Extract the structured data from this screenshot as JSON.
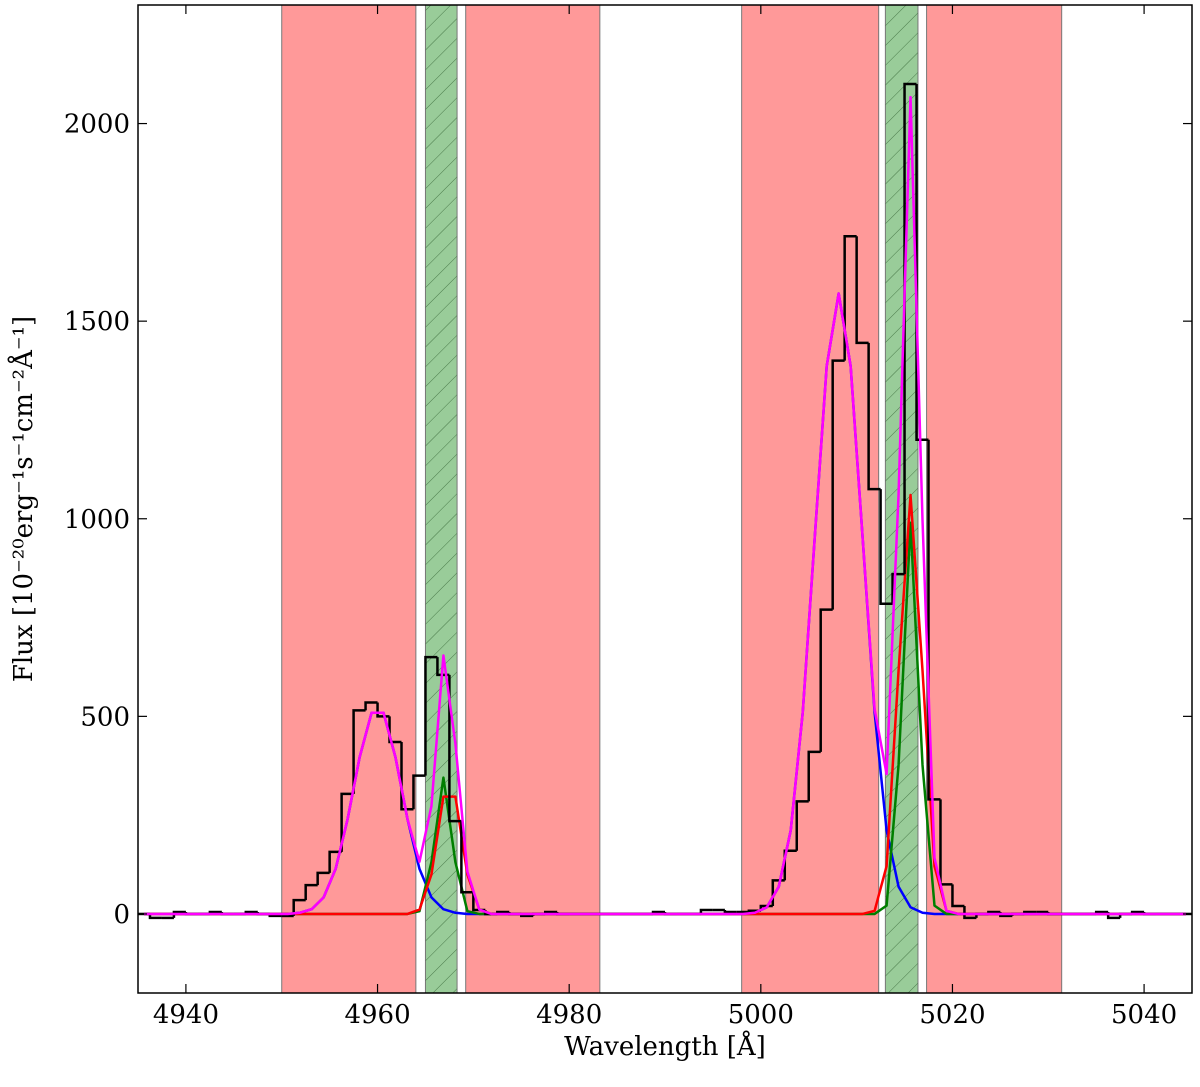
{
  "chart_data": {
    "type": "histogram",
    "xlabel": "Wavelength [Å]",
    "ylabel": "Flux [10⁻²⁰erg⁻¹s⁻¹cm⁻²Å⁻¹]",
    "xlim": [
      4935,
      5045
    ],
    "ylim": [
      -200,
      2300
    ],
    "xticks": [
      4940,
      4960,
      4980,
      5000,
      5020,
      5040
    ],
    "yticks": [
      0,
      500,
      1000,
      1500,
      2000
    ],
    "color": "#000000",
    "bins": [
      4935,
      4936.25,
      4937.5,
      4938.75,
      4940,
      4941.25,
      4942.5,
      4943.75,
      4945,
      4946.25,
      4947.5,
      4948.75,
      4950,
      4951.25,
      4952.5,
      4953.75,
      4955,
      4956.25,
      4957.5,
      4958.75,
      4960,
      4961.25,
      4962.5,
      4963.75,
      4965,
      4966.25,
      4967.5,
      4968.75,
      4970,
      4971.25,
      4972.5,
      4973.75,
      4975,
      4976.25,
      4977.5,
      4978.75,
      4980,
      4981.25,
      4982.5,
      4983.75,
      4985,
      4986.25,
      4987.5,
      4988.75,
      4990,
      4991.25,
      4992.5,
      4993.75,
      4995,
      4996.25,
      4997.5,
      4998.75,
      5000,
      5001.25,
      5002.5,
      5003.75,
      5005,
      5006.25,
      5007.5,
      5008.75,
      5010,
      5011.25,
      5012.5,
      5013.75,
      5015,
      5016.25,
      5017.5,
      5018.75,
      5020,
      5021.25,
      5022.5,
      5023.75,
      5025,
      5026.25,
      5027.5,
      5028.75,
      5030,
      5031.25,
      5032.5,
      5033.75,
      5035,
      5036.25,
      5037.5,
      5038.75,
      5040,
      5041.25,
      5042.5,
      5043.75,
      5045
    ],
    "values": [
      0,
      -10,
      -10,
      5,
      0,
      0,
      5,
      0,
      0,
      5,
      0,
      -5,
      -5,
      35,
      73,
      104,
      157,
      304,
      515,
      535,
      500,
      435,
      265,
      350,
      650,
      605,
      235,
      55,
      10,
      0,
      5,
      0,
      -5,
      0,
      5,
      0,
      0,
      0,
      0,
      0,
      0,
      0,
      0,
      5,
      0,
      0,
      0,
      10,
      10,
      5,
      5,
      8,
      20,
      85,
      160,
      285,
      410,
      770,
      1400,
      1715,
      1445,
      1075,
      785,
      860,
      2100,
      1200,
      290,
      75,
      20,
      -10,
      0,
      5,
      -5,
      0,
      5,
      5,
      0,
      0,
      0,
      0,
      5,
      -10,
      0,
      5,
      0,
      0,
      0,
      0
    ],
    "x": [
      4935.625,
      4936.875,
      4938.125,
      4939.375,
      4940.625,
      4941.875,
      4943.125,
      4944.375,
      4945.625,
      4946.875,
      4948.125,
      4949.375,
      4950.625,
      4951.875,
      4953.125,
      4954.375,
      4955.625,
      4956.875,
      4958.125,
      4959.375,
      4960.625,
      4961.875,
      4963.125,
      4964.375,
      4965.625,
      4966.875,
      4968.125,
      4969.375,
      4970.625,
      4971.875,
      4973.125,
      4974.375,
      4975.625,
      4976.875,
      4978.125,
      4979.375,
      4980.625,
      4981.875,
      4983.125,
      4984.375,
      4985.625,
      4986.875,
      4988.125,
      4989.375,
      4990.625,
      4991.875,
      4993.125,
      4994.375,
      4995.625,
      4996.875,
      4998.125,
      4999.375,
      5000.625,
      5001.875,
      5003.125,
      5004.375,
      5005.625,
      5006.875,
      5008.125,
      5009.375,
      5010.625,
      5011.875,
      5013.125,
      5014.375,
      5015.625,
      5016.875,
      5018.125,
      5019.375,
      5020.625,
      5021.875,
      5023.125,
      5024.375,
      5025.625,
      5026.875,
      5028.125,
      5029.375,
      5030.625,
      5031.875,
      5033.125,
      5034.375,
      5035.625,
      5036.875,
      5038.125,
      5039.375,
      5040.625,
      5041.875,
      5043.125,
      5044.375
    ],
    "series": [
      {
        "color": "#0000ff",
        "values": [
          0,
          0,
          0,
          0,
          0,
          0,
          0,
          0,
          0,
          0,
          0,
          0,
          0,
          3,
          12,
          42,
          114,
          240,
          396,
          509,
          509,
          396,
          240,
          114,
          42,
          12,
          3,
          0,
          0,
          0,
          0,
          0,
          0,
          0,
          0,
          0,
          0,
          0,
          0,
          0,
          0,
          0,
          0,
          0,
          0,
          0,
          0,
          0,
          0,
          0,
          0,
          3,
          17,
          69,
          212,
          510,
          952,
          1386,
          1570,
          1386,
          952,
          510,
          212,
          69,
          17,
          3,
          0,
          0,
          0,
          0,
          0,
          0,
          0,
          0,
          0,
          0,
          0,
          0,
          0,
          0,
          0,
          0,
          0,
          0,
          0,
          0,
          0,
          0
        ]
      },
      {
        "color": "#007f00",
        "values": [
          0,
          0,
          0,
          0,
          0,
          0,
          0,
          0,
          0,
          0,
          0,
          0,
          0,
          0,
          0,
          0,
          0,
          0,
          0,
          0,
          0,
          0,
          0,
          7,
          131,
          345,
          131,
          7,
          0,
          0,
          0,
          0,
          0,
          0,
          0,
          0,
          0,
          0,
          0,
          0,
          0,
          0,
          0,
          0,
          0,
          0,
          0,
          0,
          0,
          0,
          0,
          0,
          0,
          0,
          0,
          0,
          0,
          0,
          0,
          0,
          0,
          0,
          21,
          377,
          990,
          377,
          21,
          0,
          0,
          0,
          0,
          0,
          0,
          0,
          0,
          0,
          0,
          0,
          0,
          0,
          0,
          0,
          0,
          0,
          0,
          0,
          0,
          0
        ]
      },
      {
        "color": "#ff0000",
        "values": [
          0,
          0,
          0,
          0,
          0,
          0,
          0,
          0,
          0,
          0,
          0,
          0,
          0,
          0,
          0,
          0,
          0,
          0,
          0,
          0,
          0,
          0,
          0,
          11,
          100,
          297,
          297,
          100,
          11,
          0,
          0,
          0,
          0,
          0,
          0,
          0,
          0,
          0,
          0,
          0,
          0,
          0,
          0,
          0,
          0,
          0,
          0,
          0,
          0,
          0,
          0,
          0,
          0,
          0,
          0,
          0,
          0,
          0,
          0,
          0,
          0,
          8,
          121,
          616,
          1060,
          616,
          121,
          8,
          0,
          0,
          0,
          0,
          0,
          0,
          0,
          0,
          0,
          0,
          0,
          0,
          0,
          0,
          0,
          0,
          0,
          0,
          0,
          0
        ]
      },
      {
        "color": "#ff00ff",
        "values": [
          0,
          0,
          0,
          0,
          0,
          0,
          0,
          0,
          0,
          0,
          0,
          0,
          0,
          3,
          12,
          42,
          114,
          240,
          396,
          509,
          509,
          396,
          240,
          132,
          273,
          654,
          431,
          107,
          11,
          0,
          0,
          0,
          0,
          0,
          0,
          0,
          0,
          0,
          0,
          0,
          0,
          0,
          0,
          0,
          0,
          0,
          0,
          0,
          0,
          0,
          0,
          3,
          17,
          69,
          212,
          510,
          952,
          1386,
          1570,
          1386,
          952,
          518,
          354,
          1062,
          2067,
          996,
          142,
          8,
          0,
          0,
          0,
          0,
          0,
          0,
          0,
          0,
          0,
          0,
          0,
          0,
          0,
          0,
          0,
          0,
          0,
          0,
          0,
          0
        ]
      }
    ],
    "spans": [
      {
        "start": 4950,
        "end": 4964,
        "color": "#ff9999",
        "hatch": false
      },
      {
        "start": 4965,
        "end": 4968.3,
        "color": "#99cc99",
        "hatch": true
      },
      {
        "start": 4969.2,
        "end": 4983.2,
        "color": "#ff9999",
        "hatch": false
      },
      {
        "start": 4998,
        "end": 5012.3,
        "color": "#ff9999",
        "hatch": false
      },
      {
        "start": 5013,
        "end": 5016.4,
        "color": "#99cc99",
        "hatch": true
      },
      {
        "start": 5017.3,
        "end": 5031.4,
        "color": "#ff9999",
        "hatch": false
      }
    ]
  }
}
